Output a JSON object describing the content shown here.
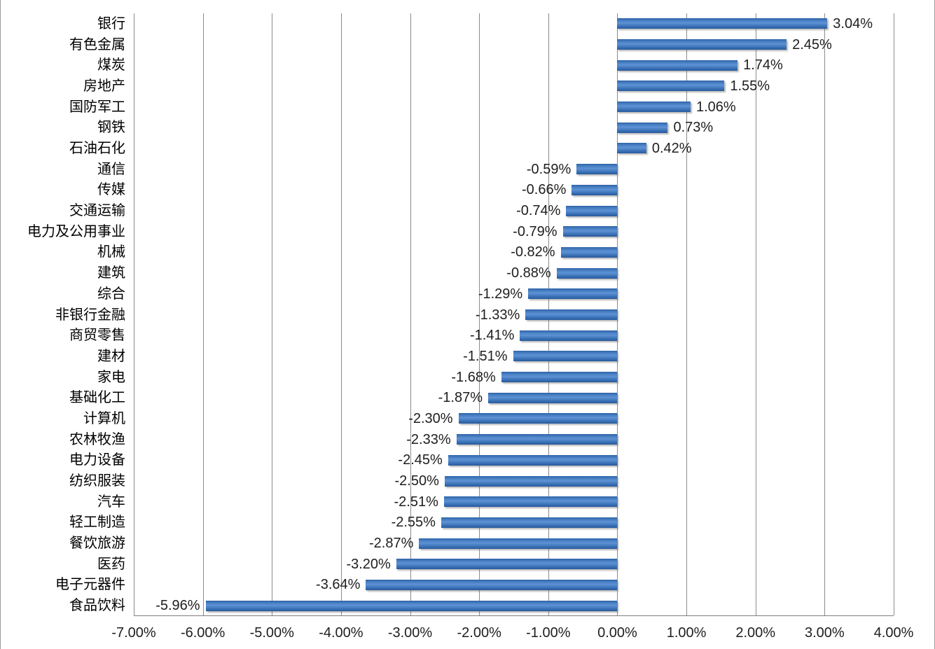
{
  "chart_data": {
    "type": "bar",
    "orientation": "horizontal",
    "title": "",
    "xlabel": "",
    "ylabel": "",
    "legend": "none",
    "grid": "vertical gridlines",
    "xlim": [
      -7,
      4
    ],
    "x_tick_step": 1,
    "x_tick_labels": [
      "-7.00%",
      "-6.00%",
      "-5.00%",
      "-4.00%",
      "-3.00%",
      "-2.00%",
      "-1.00%",
      "0.00%",
      "1.00%",
      "2.00%",
      "3.00%",
      "4.00%"
    ],
    "categories": [
      "银行",
      "有色金属",
      "煤炭",
      "房地产",
      "国防军工",
      "钢铁",
      "石油石化",
      "通信",
      "传媒",
      "交通运输",
      "电力及公用事业",
      "机械",
      "建筑",
      "综合",
      "非银行金融",
      "商贸零售",
      "建材",
      "家电",
      "基础化工",
      "计算机",
      "农林牧渔",
      "电力设备",
      "纺织服装",
      "汽车",
      "轻工制造",
      "餐饮旅游",
      "医药",
      "电子元器件",
      "食品饮料"
    ],
    "values": [
      3.04,
      2.45,
      1.74,
      1.55,
      1.06,
      0.73,
      0.42,
      -0.59,
      -0.66,
      -0.74,
      -0.79,
      -0.82,
      -0.88,
      -1.29,
      -1.33,
      -1.41,
      -1.51,
      -1.68,
      -1.87,
      -2.3,
      -2.33,
      -2.45,
      -2.5,
      -2.51,
      -2.55,
      -2.87,
      -3.2,
      -3.64,
      -5.96
    ],
    "value_labels": [
      "3.04%",
      "2.45%",
      "1.74%",
      "1.55%",
      "1.06%",
      "0.73%",
      "0.42%",
      "-0.59%",
      "-0.66%",
      "-0.74%",
      "-0.79%",
      "-0.82%",
      "-0.88%",
      "-1.29%",
      "-1.33%",
      "-1.41%",
      "-1.51%",
      "-1.68%",
      "-1.87%",
      "-2.30%",
      "-2.33%",
      "-2.45%",
      "-2.50%",
      "-2.51%",
      "-2.55%",
      "-2.87%",
      "-3.20%",
      "-3.64%",
      "-5.96%"
    ],
    "colors": {
      "bar": "#3E74BC",
      "gridline": "#8C8C8C",
      "axis_line": "#7F7F7F",
      "text": "#1E1E1E",
      "background": "#FFFFFF",
      "frame_border": "#9A9A9A"
    }
  }
}
